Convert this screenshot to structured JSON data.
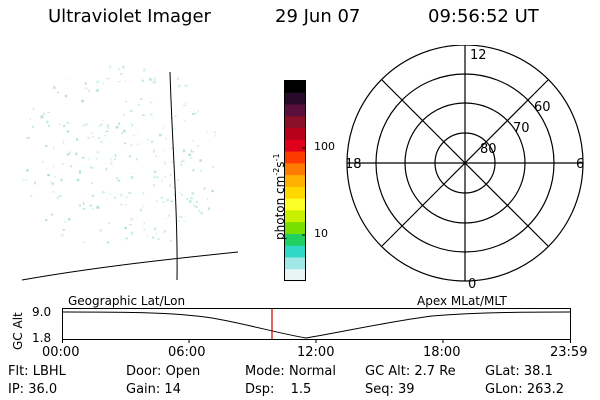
{
  "header": {
    "instrument": "Ultraviolet Imager",
    "date": "29 Jun 07",
    "time": "09:56:52 UT"
  },
  "colorbar": {
    "unit_prefix": "photon cm",
    "exp1": "-2",
    "mid": "s",
    "exp2": "-1",
    "ticks": [
      "100",
      "10"
    ],
    "colors": [
      "#000000",
      "#2a0a2a",
      "#5a0f3c",
      "#8a0f28",
      "#b8001a",
      "#e0001a",
      "#ff3a00",
      "#ff7a00",
      "#ffb000",
      "#ffd800",
      "#ffff28",
      "#c8f000",
      "#78e000",
      "#20d060",
      "#30d8c8",
      "#a0e8e8",
      "#e8f4f4"
    ]
  },
  "polar": {
    "mlt_labels": {
      "top": "12",
      "left": "18",
      "right": "6",
      "bottom": "0"
    },
    "lat_labels": [
      "60",
      "70",
      "80"
    ]
  },
  "timeline": {
    "ylabel": "GC Alt",
    "y_ticks": [
      "9.0",
      "1.8"
    ],
    "left_label": "Geographic Lat/Lon",
    "right_label": "Apex MLat/MLT",
    "x_ticks": [
      "00:00",
      "06:00",
      "12:00",
      "18:00",
      "23:59"
    ],
    "marker_color": "#cc0000"
  },
  "info": {
    "flt_label": "Flt:",
    "flt_value": "LBHL",
    "door_label": "Door:",
    "door_value": "Open",
    "mode_label": "Mode:",
    "mode_value": "Normal",
    "gcalt_label": "GC Alt:",
    "gcalt_value": "2.7 Re",
    "glat_label": "GLat:",
    "glat_value": "38.1",
    "ip_label": "IP:",
    "ip_value": "36.0",
    "gain_label": "Gain:",
    "gain_value": "14",
    "dsp_label": "Dsp:",
    "dsp_value": "1.5",
    "seq_label": "Seq:",
    "seq_value": "39",
    "glon_label": "GLon:",
    "glon_value": "263.2"
  }
}
